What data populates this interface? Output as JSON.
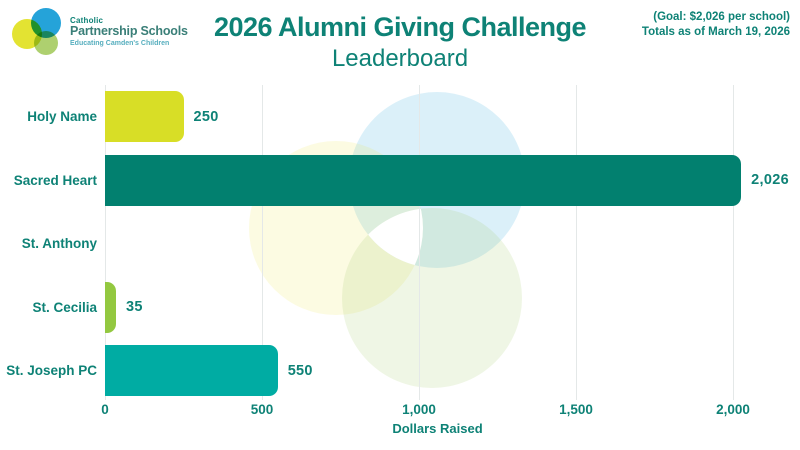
{
  "header": {
    "logo": {
      "line1": "Catholic",
      "line2": "Partnership Schools",
      "tagline": "Educating Camden's Children"
    },
    "title": "2026 Alumni Giving Challenge",
    "subtitle": "Leaderboard",
    "goal_line": "(Goal: $2,026 per school)",
    "totals_line": "Totals as of March 19, 2026"
  },
  "colors": {
    "accent_teal": "#0E8276",
    "bar_holy_name": "#D8DE26",
    "bar_sacred_heart": "#02806F",
    "bar_st_cecilia": "#93C840",
    "bar_st_joseph_pc": "#00ACA3",
    "gridline": "#E4E8E8"
  },
  "chart_data": {
    "type": "bar",
    "orientation": "horizontal",
    "title": "2026 Alumni Giving Challenge — Leaderboard",
    "categories": [
      "Holy Name",
      "Sacred Heart",
      "St. Anthony",
      "St. Cecilia",
      "St. Joseph PC"
    ],
    "values": [
      250,
      2026,
      0,
      35,
      550
    ],
    "value_labels": [
      "250",
      "2,026",
      "",
      "35",
      "550"
    ],
    "bar_colors": [
      "#D8DE26",
      "#02806F",
      "none",
      "#93C840",
      "#00ACA3"
    ],
    "xlabel": "Dollars Raised",
    "xlim": [
      0,
      2120
    ],
    "xticks": [
      0,
      500,
      1000,
      1500,
      2000
    ],
    "xtick_labels": [
      "0",
      "500",
      "1,000",
      "1,500",
      "2,000"
    ],
    "grid": "vertical",
    "legend": "none",
    "goal_annotation": "(Goal: $2,026 per school)",
    "as_of_annotation": "Totals as of March 19, 2026"
  }
}
